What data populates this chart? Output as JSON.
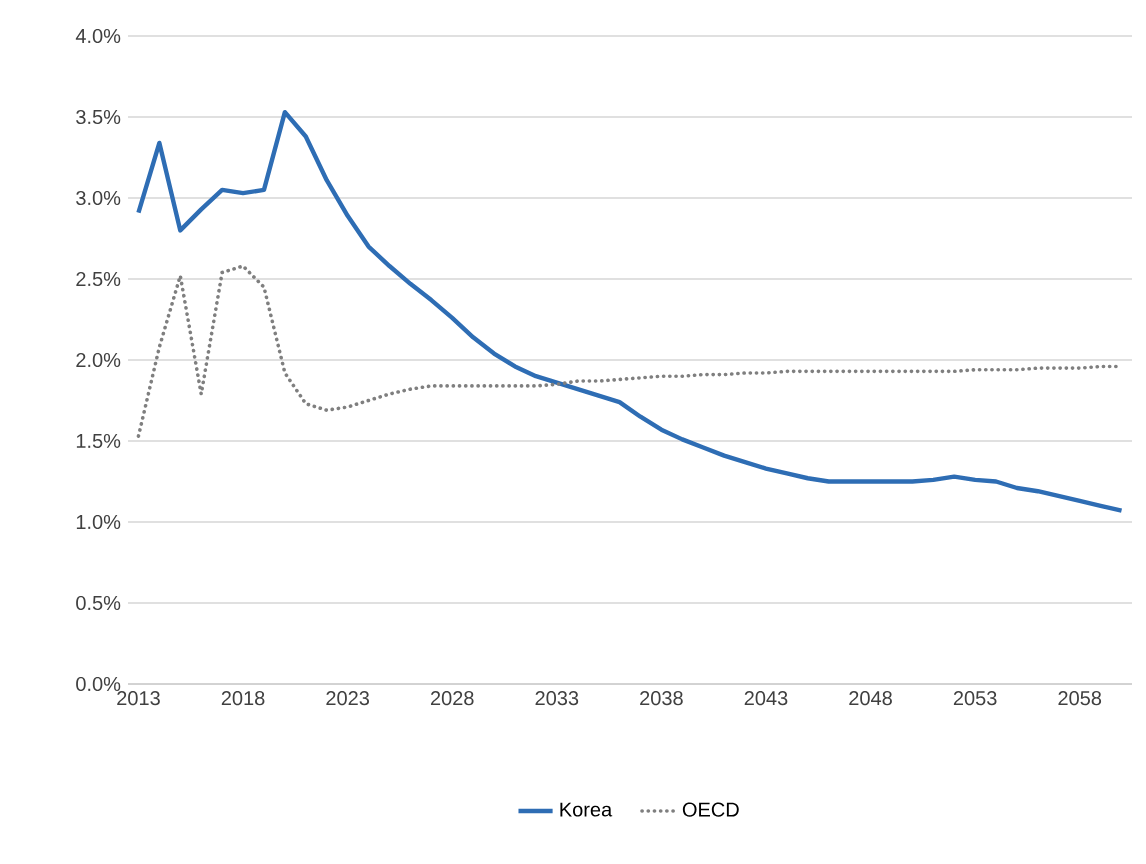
{
  "chart_data": {
    "type": "line",
    "x": [
      2013,
      2014,
      2015,
      2016,
      2017,
      2018,
      2019,
      2020,
      2021,
      2022,
      2023,
      2024,
      2025,
      2026,
      2027,
      2028,
      2029,
      2030,
      2031,
      2032,
      2033,
      2034,
      2035,
      2036,
      2037,
      2038,
      2039,
      2040,
      2041,
      2042,
      2043,
      2044,
      2045,
      2046,
      2047,
      2048,
      2049,
      2050,
      2051,
      2052,
      2053,
      2054,
      2055,
      2056,
      2057,
      2058,
      2059,
      2060
    ],
    "series": [
      {
        "name": "Korea",
        "color": "#2e6db4",
        "line_style": "solid",
        "values": [
          2.91,
          3.34,
          2.8,
          2.93,
          3.05,
          3.03,
          3.05,
          3.53,
          3.38,
          3.11,
          2.89,
          2.7,
          2.58,
          2.47,
          2.37,
          2.26,
          2.14,
          2.04,
          1.96,
          1.9,
          1.86,
          1.82,
          1.78,
          1.74,
          1.65,
          1.57,
          1.51,
          1.46,
          1.41,
          1.37,
          1.33,
          1.3,
          1.27,
          1.25,
          1.25,
          1.25,
          1.25,
          1.25,
          1.26,
          1.28,
          1.26,
          1.25,
          1.21,
          1.19,
          1.16,
          1.13,
          1.1,
          1.07
        ]
      },
      {
        "name": "OECD",
        "color": "#7f7f7f",
        "line_style": "dotted",
        "values": [
          1.53,
          2.08,
          2.52,
          1.79,
          2.54,
          2.58,
          2.45,
          1.92,
          1.73,
          1.69,
          1.71,
          1.75,
          1.79,
          1.82,
          1.84,
          1.84,
          1.84,
          1.84,
          1.84,
          1.84,
          1.85,
          1.87,
          1.87,
          1.88,
          1.89,
          1.9,
          1.9,
          1.91,
          1.91,
          1.92,
          1.92,
          1.93,
          1.93,
          1.93,
          1.93,
          1.93,
          1.93,
          1.93,
          1.93,
          1.93,
          1.94,
          1.94,
          1.94,
          1.95,
          1.95,
          1.95,
          1.96,
          1.96
        ]
      }
    ],
    "xlim": [
      2012.5,
      2060.5
    ],
    "xticks": [
      2013,
      2018,
      2023,
      2028,
      2033,
      2038,
      2043,
      2048,
      2053,
      2058
    ],
    "ylim": [
      0,
      4
    ],
    "yticks": [
      {
        "value": 0,
        "label": "0.0%"
      },
      {
        "value": 0.5,
        "label": "0.5%"
      },
      {
        "value": 1,
        "label": "1.0%"
      },
      {
        "value": 1.5,
        "label": "1.5%"
      },
      {
        "value": 2,
        "label": "2.0%"
      },
      {
        "value": 2.5,
        "label": "2.5%"
      },
      {
        "value": 3,
        "label": "3.0%"
      },
      {
        "value": 3.5,
        "label": "3.5%"
      },
      {
        "value": 4,
        "label": "4.0%"
      }
    ],
    "grid": "y",
    "legend": "bottom",
    "marker": "none"
  }
}
